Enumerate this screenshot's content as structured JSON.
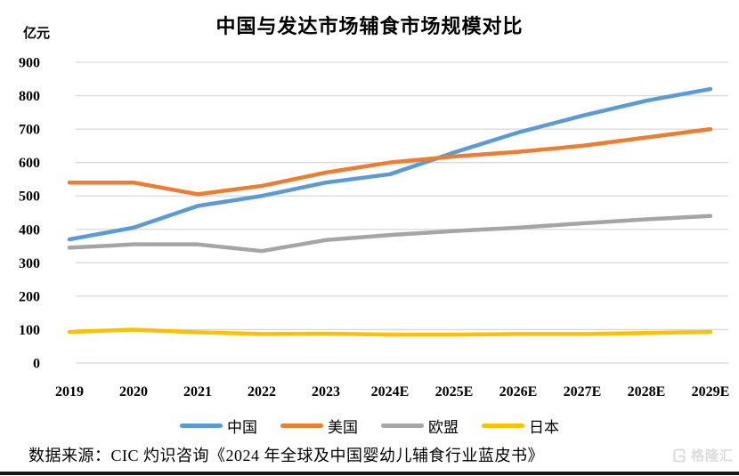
{
  "header": {
    "title": "中国与发达市场辅食市场规模对比",
    "unit_label": "亿元"
  },
  "chart_data": {
    "type": "line",
    "title": "中国与发达市场辅食市场规模对比",
    "ylabel": "亿元",
    "xlabel": "",
    "ylim": [
      0,
      900
    ],
    "ytick_step": 100,
    "grid": true,
    "legend_position": "bottom",
    "gridline_color": "#d9d9d9",
    "categories": [
      "2019",
      "2020",
      "2021",
      "2022",
      "2023",
      "2024E",
      "2025E",
      "2026E",
      "2027E",
      "2028E",
      "2029E"
    ],
    "series": [
      {
        "id": "china",
        "name": "中国",
        "color": "#5B9BD5",
        "values": [
          370,
          405,
          470,
          500,
          540,
          565,
          630,
          690,
          740,
          785,
          820
        ]
      },
      {
        "id": "usa",
        "name": "美国",
        "color": "#ED7D31",
        "values": [
          540,
          540,
          505,
          530,
          570,
          600,
          618,
          632,
          650,
          675,
          700
        ]
      },
      {
        "id": "eu",
        "name": "欧盟",
        "color": "#A5A5A5",
        "values": [
          345,
          355,
          355,
          335,
          368,
          383,
          395,
          405,
          418,
          430,
          440
        ]
      },
      {
        "id": "japan",
        "name": "日本",
        "color": "#FFC000",
        "values": [
          93,
          100,
          92,
          87,
          88,
          85,
          85,
          87,
          87,
          90,
          93
        ]
      }
    ]
  },
  "footer": {
    "source": "数据来源：CIC 灼识咨询《2024 年全球及中国婴幼儿辅食行业蓝皮书》",
    "watermark": "格隆汇"
  }
}
